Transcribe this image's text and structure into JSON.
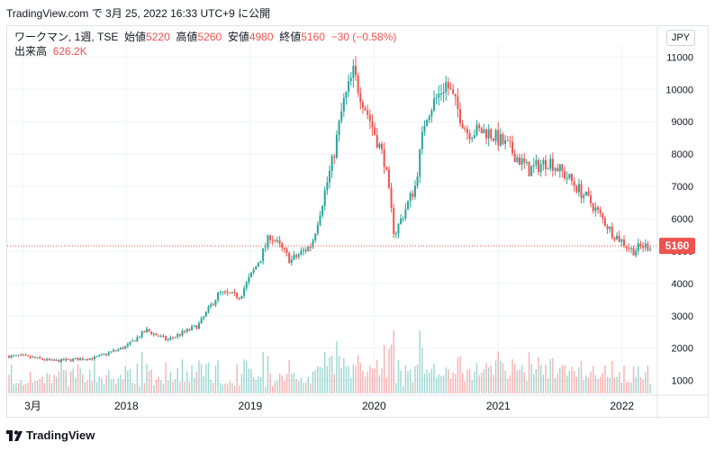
{
  "credit": "TradingView.com で 3月 25, 2022 16:33 UTC+9 に公開",
  "legend": {
    "symbol": "ワークマン, 1週, TSE",
    "open_label": "始値",
    "open": "5220",
    "high_label": "高値",
    "high": "5260",
    "low_label": "安値",
    "low": "4980",
    "close_label": "終値",
    "close": "5160",
    "change": "−30 (−0.58%)",
    "volume_label": "出来高",
    "volume": "626.2K"
  },
  "currency_button": "JPY",
  "last_price_label": "5160",
  "footer_brand": "TradingView",
  "colors": {
    "up": "#26a69a",
    "down": "#ef5350",
    "grid": "#f0f3fa",
    "price_line": "#ef5350",
    "text": "#131722"
  },
  "chart_data": {
    "type": "candlestick",
    "interval": "1W",
    "y_ticks": [
      1000,
      2000,
      3000,
      4000,
      5000,
      6000,
      7000,
      8000,
      9000,
      10000,
      11000
    ],
    "y_range": [
      600,
      11400
    ],
    "x_ticks": [
      "3月",
      "2018",
      "2019",
      "2020",
      "2021",
      "2022"
    ],
    "x_tick_dates": [
      "2017-03",
      "2018-01",
      "2019-01",
      "2020-01",
      "2021-01",
      "2022-01"
    ],
    "last_price": 5160,
    "key_points": [
      {
        "date": "2017-03",
        "close": 1750
      },
      {
        "date": "2017-06",
        "close": 1600
      },
      {
        "date": "2017-10",
        "close": 1700
      },
      {
        "date": "2018-01",
        "close": 2050
      },
      {
        "date": "2018-03",
        "close": 2550
      },
      {
        "date": "2018-05",
        "close": 2250
      },
      {
        "date": "2018-08",
        "close": 2700
      },
      {
        "date": "2018-10",
        "close": 3700
      },
      {
        "date": "2018-12",
        "close": 3600
      },
      {
        "date": "2019-02",
        "close": 4800
      },
      {
        "date": "2019-03",
        "close": 5500
      },
      {
        "date": "2019-05",
        "close": 4700
      },
      {
        "date": "2019-07",
        "close": 5200
      },
      {
        "date": "2019-09",
        "close": 7800
      },
      {
        "date": "2019-10",
        "close": 9500
      },
      {
        "date": "2019-11",
        "close": 10500
      },
      {
        "date": "2019-12",
        "close": 9600
      },
      {
        "date": "2020-02",
        "close": 7800
      },
      {
        "date": "2020-03",
        "close": 5500
      },
      {
        "date": "2020-05",
        "close": 7000
      },
      {
        "date": "2020-06",
        "close": 9200
      },
      {
        "date": "2020-08",
        "close": 10200
      },
      {
        "date": "2020-10",
        "close": 8700
      },
      {
        "date": "2020-12",
        "close": 8700
      },
      {
        "date": "2021-02",
        "close": 8200
      },
      {
        "date": "2021-04",
        "close": 7500
      },
      {
        "date": "2021-06",
        "close": 7800
      },
      {
        "date": "2021-08",
        "close": 7200
      },
      {
        "date": "2021-10",
        "close": 6500
      },
      {
        "date": "2021-12",
        "close": 5600
      },
      {
        "date": "2022-02",
        "close": 5000
      },
      {
        "date": "2022-03",
        "close": 5160
      }
    ],
    "volume_bars_visible": true
  }
}
